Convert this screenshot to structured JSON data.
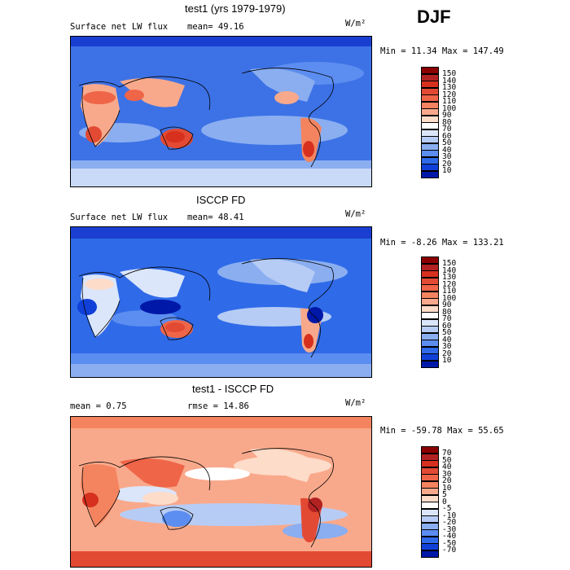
{
  "season": "DJF",
  "units": "W/m²",
  "panels": [
    {
      "title": "test1 (yrs 1979-1979)",
      "label_left": "Surface net LW flux",
      "label_stat": "mean=  49.16",
      "minmax": "Min =  11.34 Max = 147.49",
      "colorbar": {
        "levels": [
          "150",
          "140",
          "130",
          "120",
          "110",
          "100",
          "90",
          "80",
          "70",
          "60",
          "50",
          "40",
          "30",
          "20",
          "10"
        ],
        "colors": [
          "#8b0000",
          "#b22222",
          "#d7301f",
          "#e34a33",
          "#ef6548",
          "#f4845f",
          "#f9a98b",
          "#fddcc9",
          "#ffffff",
          "#dbe6fb",
          "#b6ccf5",
          "#8aaef0",
          "#5c8df0",
          "#2f6ae8",
          "#1040d8",
          "#0018a8"
        ]
      }
    },
    {
      "title": "ISCCP FD",
      "label_left": "Surface net LW flux",
      "label_stat": "mean=  48.41",
      "minmax": "Min =  -8.26 Max = 133.21",
      "colorbar": {
        "levels": [
          "150",
          "140",
          "130",
          "120",
          "110",
          "100",
          "90",
          "80",
          "70",
          "60",
          "50",
          "40",
          "30",
          "20",
          "10"
        ],
        "colors": [
          "#8b0000",
          "#b22222",
          "#d7301f",
          "#e34a33",
          "#ef6548",
          "#f4845f",
          "#f9a98b",
          "#fddcc9",
          "#ffffff",
          "#dbe6fb",
          "#b6ccf5",
          "#8aaef0",
          "#5c8df0",
          "#2f6ae8",
          "#1040d8",
          "#0018a8"
        ]
      }
    },
    {
      "title": "test1 - ISCCP FD",
      "label_left": "mean =   0.75",
      "label_stat": "rmse =  14.86",
      "minmax": "Min = -59.78 Max =  55.65",
      "colorbar": {
        "levels": [
          "70",
          "50",
          "40",
          "30",
          "20",
          "10",
          "5",
          "0",
          "-5",
          "-10",
          "-20",
          "-30",
          "-40",
          "-50",
          "-70"
        ],
        "colors": [
          "#8b0000",
          "#b22222",
          "#d7301f",
          "#e34a33",
          "#ef6548",
          "#f4845f",
          "#f9a98b",
          "#fddcc9",
          "#ffffff",
          "#dbe6fb",
          "#b6ccf5",
          "#8aaef0",
          "#5c8df0",
          "#2f6ae8",
          "#1040d8",
          "#0018a8"
        ]
      }
    }
  ]
}
